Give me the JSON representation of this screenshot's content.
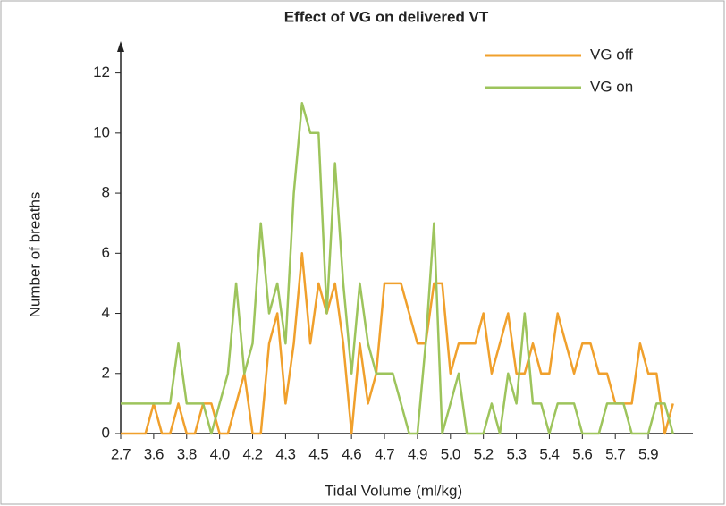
{
  "chart_data": {
    "type": "line",
    "title": "Effect of VG on delivered VT",
    "x_label": "Tidal Volume (ml/kg)",
    "y_label": "Number of breaths",
    "categories": [
      "2.7",
      null,
      null,
      null,
      "3.6",
      null,
      null,
      null,
      "3.8",
      null,
      null,
      null,
      "4.0",
      null,
      null,
      null,
      "4.2",
      null,
      null,
      null,
      "4.3",
      null,
      null,
      null,
      "4.5",
      null,
      null,
      null,
      "4.6",
      null,
      null,
      null,
      "4.7",
      null,
      null,
      null,
      "4.9",
      null,
      null,
      null,
      "5.0",
      null,
      null,
      null,
      "5.2",
      null,
      null,
      null,
      "5.3",
      null,
      null,
      null,
      "5.4",
      null,
      null,
      null,
      "5.6",
      null,
      null,
      null,
      "5.7",
      null,
      null,
      null,
      "5.9",
      null,
      null,
      null
    ],
    "series": [
      {
        "name": "VG off",
        "color": "#f0a02c",
        "values": [
          0,
          0,
          0,
          0,
          1,
          0,
          0,
          1,
          0,
          0,
          1,
          1,
          0,
          0,
          1,
          2,
          0,
          0,
          3,
          4,
          1,
          3,
          6,
          3,
          5,
          4,
          5,
          3,
          0,
          3,
          1,
          2,
          5,
          5,
          5,
          4,
          3,
          3,
          5,
          5,
          2,
          3,
          3,
          3,
          4,
          2,
          3,
          4,
          2,
          2,
          3,
          2,
          2,
          4,
          3,
          2,
          3,
          3,
          2,
          2,
          1,
          1,
          1,
          3,
          2,
          2,
          0,
          1
        ]
      },
      {
        "name": "VG on",
        "color": "#9dc45c",
        "values": [
          1,
          1,
          1,
          1,
          1,
          1,
          1,
          3,
          1,
          1,
          1,
          0,
          1,
          2,
          5,
          2,
          3,
          7,
          4,
          5,
          3,
          8,
          11,
          10,
          10,
          4,
          9,
          5,
          2,
          5,
          3,
          2,
          2,
          2,
          1,
          0,
          0,
          3,
          7,
          0,
          1,
          2,
          0,
          0,
          0,
          1,
          0,
          2,
          1,
          4,
          1,
          1,
          0,
          1,
          1,
          1,
          0,
          0,
          0,
          1,
          1,
          1,
          0,
          0,
          0,
          1,
          1,
          0
        ]
      }
    ],
    "ylim": [
      0,
      13
    ],
    "yticks": [
      0,
      2,
      4,
      6,
      8,
      10,
      12
    ],
    "legend": "top-right"
  }
}
